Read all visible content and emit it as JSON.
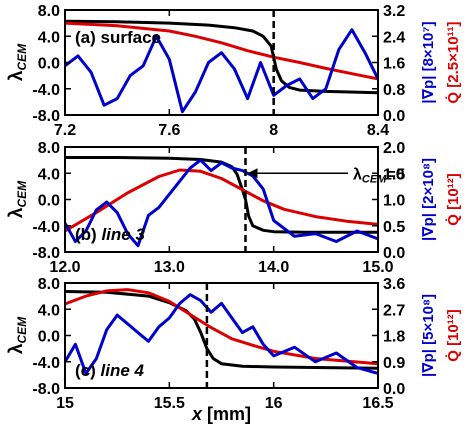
{
  "chart_data": [
    {
      "type": "line",
      "panel_label": "(a) surface",
      "panel_label_italic": false,
      "xlim": [
        7.2,
        8.4
      ],
      "x_ticks": [
        7.2,
        7.6,
        8.0,
        8.4
      ],
      "left_ylim": [
        -8,
        8
      ],
      "left_ticks": [
        -8,
        -4,
        0,
        4,
        8
      ],
      "right_ylim": [
        0,
        3.2
      ],
      "right_ticks": [
        0.0,
        0.8,
        1.6,
        2.4,
        3.2
      ],
      "ylabel_left": "λCEM",
      "ylabel_right_blue": "|∇p| [8×10⁷]",
      "ylabel_right_red": "Q̇ [2.5×10¹¹]",
      "vline_x": 8.0,
      "series": [
        {
          "axis": "left",
          "color": "#000000",
          "x": [
            7.2,
            7.4,
            7.6,
            7.75,
            7.85,
            7.92,
            7.96,
            7.99,
            8.01,
            8.03,
            8.06,
            8.1,
            8.2,
            8.4
          ],
          "y": [
            6.3,
            6.2,
            6.0,
            5.7,
            5.3,
            4.8,
            4.0,
            2.5,
            -1.0,
            -2.8,
            -3.8,
            -4.2,
            -4.4,
            -4.6
          ]
        },
        {
          "axis": "left",
          "color": "#dd0000",
          "x": [
            7.2,
            7.4,
            7.6,
            7.7,
            7.8,
            7.9,
            8.0,
            8.1,
            8.2,
            8.3,
            8.4
          ],
          "y": [
            6.0,
            5.6,
            4.8,
            4.0,
            3.0,
            1.8,
            0.8,
            0.0,
            -0.9,
            -1.7,
            -2.5
          ]
        },
        {
          "axis": "right",
          "color": "#0000cc",
          "x": [
            7.2,
            7.25,
            7.3,
            7.35,
            7.4,
            7.45,
            7.5,
            7.55,
            7.6,
            7.65,
            7.7,
            7.75,
            7.8,
            7.85,
            7.9,
            7.95,
            8.0,
            8.05,
            8.1,
            8.15,
            8.2,
            8.25,
            8.3,
            8.35,
            8.4
          ],
          "y": [
            1.5,
            1.8,
            1.3,
            0.3,
            0.5,
            1.2,
            1.5,
            2.4,
            1.7,
            0.1,
            0.7,
            1.6,
            1.9,
            1.4,
            0.5,
            1.6,
            0.6,
            0.9,
            1.1,
            0.5,
            0.8,
            2.0,
            2.6,
            1.9,
            1.1
          ]
        }
      ]
    },
    {
      "type": "line",
      "panel_label": "(b) line 3",
      "panel_label_italic": true,
      "xlim": [
        12,
        15
      ],
      "x_ticks": [
        12,
        13,
        14,
        15
      ],
      "left_ylim": [
        -8,
        8
      ],
      "left_ticks": [
        -8,
        -4,
        0,
        4,
        8
      ],
      "right_ylim": [
        0,
        2
      ],
      "right_ticks": [
        0.0,
        0.5,
        1.0,
        1.5,
        2.0
      ],
      "ylabel_left": "λCEM",
      "ylabel_right_blue": "|∇p| [2×10⁸]",
      "ylabel_right_red": "Q̇ [10¹²]",
      "vline_x": 13.73,
      "annotation": "λCEM=0",
      "series": [
        {
          "axis": "left",
          "color": "#000000",
          "x": [
            12.0,
            12.5,
            13.0,
            13.3,
            13.5,
            13.6,
            13.65,
            13.7,
            13.73,
            13.76,
            13.8,
            13.9,
            14.0,
            14.3,
            15.0
          ],
          "y": [
            6.4,
            6.4,
            6.3,
            6.1,
            5.7,
            5.0,
            3.8,
            1.5,
            0.0,
            -2.5,
            -4.0,
            -4.7,
            -4.9,
            -5.0,
            -5.0
          ]
        },
        {
          "axis": "left",
          "color": "#dd0000",
          "x": [
            12.0,
            12.3,
            12.6,
            12.9,
            13.1,
            13.3,
            13.5,
            13.7,
            13.9,
            14.1,
            14.4,
            14.7,
            15.0
          ],
          "y": [
            -4.8,
            -2.0,
            1.0,
            3.5,
            4.5,
            4.3,
            3.2,
            1.5,
            -0.2,
            -1.5,
            -2.6,
            -3.3,
            -3.8
          ]
        },
        {
          "axis": "right",
          "color": "#0000cc",
          "x": [
            12.0,
            12.1,
            12.2,
            12.3,
            12.4,
            12.5,
            12.6,
            12.7,
            12.8,
            12.9,
            13.0,
            13.1,
            13.2,
            13.3,
            13.4,
            13.5,
            13.6,
            13.7,
            13.8,
            13.9,
            14.0,
            14.2,
            14.4,
            14.6,
            14.8,
            15.0
          ],
          "y": [
            0.55,
            0.2,
            0.4,
            0.8,
            0.95,
            0.75,
            0.35,
            0.12,
            0.7,
            0.85,
            1.1,
            1.35,
            1.6,
            1.75,
            1.55,
            1.7,
            1.6,
            1.55,
            1.45,
            1.2,
            0.6,
            0.3,
            0.35,
            0.2,
            0.4,
            0.25
          ]
        }
      ]
    },
    {
      "type": "line",
      "panel_label": "(c) line 4",
      "panel_label_italic": true,
      "xlim": [
        15,
        16.5
      ],
      "x_ticks": [
        15.0,
        15.5,
        16.0,
        16.5
      ],
      "left_ylim": [
        -8,
        8
      ],
      "left_ticks": [
        -8,
        -4,
        0,
        4,
        8
      ],
      "right_ylim": [
        0,
        3.6
      ],
      "right_ticks": [
        0.0,
        0.9,
        1.8,
        2.7,
        3.6
      ],
      "ylabel_left": "λCEM",
      "ylabel_right_blue": "|∇p| [5×10⁸]",
      "ylabel_right_red": "Q̇ [10¹²]",
      "xlabel": "x [mm]",
      "vline_x": 15.68,
      "series": [
        {
          "axis": "left",
          "color": "#000000",
          "x": [
            15.0,
            15.2,
            15.4,
            15.5,
            15.58,
            15.62,
            15.65,
            15.68,
            15.71,
            15.75,
            15.85,
            16.0,
            16.5
          ],
          "y": [
            6.7,
            6.6,
            6.0,
            5.0,
            3.8,
            2.5,
            0.5,
            -2.0,
            -3.5,
            -4.3,
            -4.7,
            -4.8,
            -5.0
          ]
        },
        {
          "axis": "left",
          "color": "#dd0000",
          "x": [
            15.0,
            15.1,
            15.2,
            15.3,
            15.4,
            15.5,
            15.6,
            15.7,
            15.8,
            15.9,
            16.0,
            16.2,
            16.5
          ],
          "y": [
            4.8,
            6.0,
            6.8,
            7.0,
            6.5,
            5.2,
            3.2,
            1.2,
            -0.5,
            -1.5,
            -2.4,
            -3.5,
            -4.3
          ]
        },
        {
          "axis": "right",
          "color": "#0000cc",
          "x": [
            15.0,
            15.05,
            15.1,
            15.15,
            15.2,
            15.25,
            15.3,
            15.35,
            15.4,
            15.45,
            15.5,
            15.55,
            15.6,
            15.65,
            15.7,
            15.75,
            15.8,
            15.85,
            15.9,
            15.95,
            16.0,
            16.1,
            16.2,
            16.3,
            16.4,
            16.5
          ],
          "y": [
            0.9,
            1.5,
            0.5,
            1.0,
            2.0,
            2.5,
            2.2,
            1.9,
            1.6,
            2.1,
            2.4,
            2.9,
            3.2,
            3.0,
            2.6,
            2.9,
            2.4,
            1.9,
            2.1,
            1.5,
            1.1,
            1.4,
            0.9,
            1.2,
            0.7,
            0.5
          ]
        }
      ]
    }
  ]
}
